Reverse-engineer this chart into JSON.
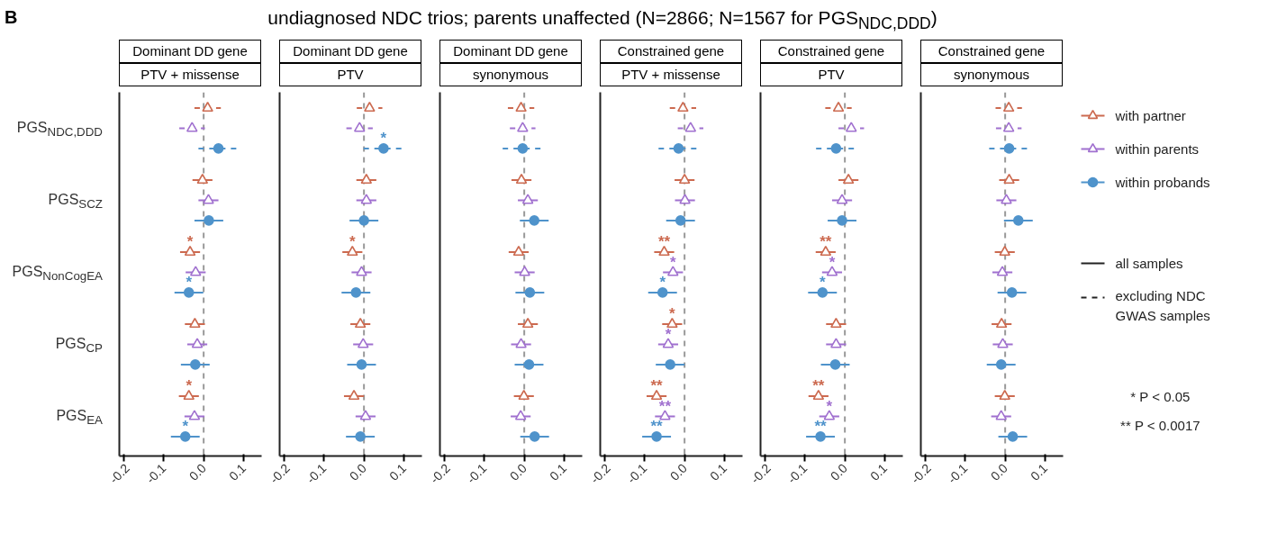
{
  "chart_data": [
    {
      "type": "scatter",
      "orientation": "horizontal",
      "title": "Dominant DD gene",
      "subtitle": "PTV + missense",
      "annotations": [
        "B",
        "undiagnosed NDC trios; parents unaffected (N=2866; N=1567 for PGS$_{NDC,DDD}$)"
      ],
      "categories": [
        "PGS$_{NDC,DDD}$",
        "PGS$_{SCZ}$",
        "PGS$_{NonCogEA}$",
        "PGS$_{CP}$",
        "PGS$_{EA}$"
      ],
      "xlim": [
        -0.211,
        0.145
      ],
      "xticks": [
        {
          "value": -0.2,
          "label": "-0.2"
        },
        {
          "value": -0.1,
          "label": "-0.1"
        },
        {
          "value": 0,
          "label": "0.0"
        },
        {
          "value": 0.1,
          "label": "0.1"
        }
      ],
      "ref_lines": [
        {
          "axis": "x",
          "value": 0,
          "color": "#999999",
          "line_style": "dashed"
        }
      ],
      "series": [
        {
          "color": "#cc6a50",
          "marker": "triangle",
          "line_style": "solid",
          "values": [
            null,
            -0.003,
            -0.034,
            -0.022,
            -0.037
          ],
          "errors": [
            null,
            0.025,
            0.025,
            0.025,
            0.025
          ],
          "value_labels": [
            null,
            null,
            "*",
            null,
            "*"
          ]
        },
        {
          "color": "#a070cf",
          "marker": "triangle",
          "line_style": "solid",
          "values": [
            null,
            0.012,
            -0.02,
            -0.016,
            -0.023
          ],
          "errors": [
            null,
            0.025,
            0.025,
            0.025,
            0.025
          ]
        },
        {
          "color": "#4f93cb",
          "marker": "circle",
          "line_style": "solid",
          "values": [
            null,
            0.013,
            -0.037,
            -0.021,
            -0.046
          ],
          "errors": [
            null,
            0.036,
            0.036,
            0.036,
            0.036
          ],
          "value_labels": [
            null,
            null,
            "*",
            null,
            "*"
          ]
        },
        {
          "color": "#cc6a50",
          "marker": "triangle",
          "line_style": "dashed",
          "values": [
            0.01,
            null,
            null,
            null,
            null
          ],
          "errors": [
            0.033,
            null,
            null,
            null,
            null
          ]
        },
        {
          "color": "#a070cf",
          "marker": "triangle",
          "line_style": "dashed",
          "values": [
            -0.029,
            null,
            null,
            null,
            null
          ],
          "errors": [
            0.032,
            null,
            null,
            null,
            null
          ]
        },
        {
          "color": "#4f93cb",
          "marker": "circle",
          "line_style": "dashed",
          "values": [
            0.037,
            null,
            null,
            null,
            null
          ],
          "errors": [
            0.05,
            null,
            null,
            null,
            null
          ]
        }
      ]
    },
    {
      "type": "scatter",
      "orientation": "horizontal",
      "title": "Dominant DD gene",
      "subtitle": "PTV",
      "tick_labels": "x",
      "categories": [
        "PGS$_{NDC,DDD}$",
        "PGS$_{SCZ}$",
        "PGS$_{NonCogEA}$",
        "PGS$_{CP}$",
        "PGS$_{EA}$"
      ],
      "xlim": [
        -0.211,
        0.145
      ],
      "xticks": [
        {
          "value": -0.2,
          "label": "-0.2"
        },
        {
          "value": -0.1,
          "label": "-0.1"
        },
        {
          "value": 0,
          "label": "0.0"
        },
        {
          "value": 0.1,
          "label": "0.1"
        }
      ],
      "ref_lines": [
        {
          "axis": "x",
          "value": 0,
          "color": "#999999",
          "line_style": "dashed"
        }
      ],
      "series": [
        {
          "color": "#cc6a50",
          "marker": "triangle",
          "line_style": "solid",
          "values": [
            null,
            0.006,
            -0.029,
            -0.009,
            -0.025
          ],
          "errors": [
            null,
            0.025,
            0.025,
            0.025,
            0.025
          ],
          "value_labels": [
            null,
            null,
            "*",
            null,
            null
          ]
        },
        {
          "color": "#a070cf",
          "marker": "triangle",
          "line_style": "solid",
          "values": [
            null,
            0.006,
            -0.006,
            -0.002,
            0.004
          ],
          "errors": [
            null,
            0.025,
            0.025,
            0.025,
            0.025
          ]
        },
        {
          "color": "#4f93cb",
          "marker": "circle",
          "line_style": "solid",
          "values": [
            null,
            0,
            -0.02,
            -0.006,
            -0.009
          ],
          "errors": [
            null,
            0.036,
            0.036,
            0.036,
            0.036
          ]
        },
        {
          "color": "#cc6a50",
          "marker": "triangle",
          "line_style": "dashed",
          "values": [
            0.014,
            null,
            null,
            null,
            null
          ],
          "errors": [
            0.032,
            null,
            null,
            null,
            null
          ]
        },
        {
          "color": "#a070cf",
          "marker": "triangle",
          "line_style": "dashed",
          "values": [
            -0.011,
            null,
            null,
            null,
            null
          ],
          "errors": [
            0.033,
            null,
            null,
            null,
            null
          ]
        },
        {
          "color": "#4f93cb",
          "marker": "circle",
          "line_style": "dashed",
          "values": [
            0.049,
            null,
            null,
            null,
            null
          ],
          "errors": [
            0.05,
            null,
            null,
            null,
            null
          ],
          "value_labels": [
            "*",
            null,
            null,
            null,
            null
          ]
        }
      ]
    },
    {
      "type": "scatter",
      "orientation": "horizontal",
      "title": "Dominant DD gene",
      "subtitle": "synonymous",
      "tick_labels": "x",
      "categories": [
        "PGS$_{NDC,DDD}$",
        "PGS$_{SCZ}$",
        "PGS$_{NonCogEA}$",
        "PGS$_{CP}$",
        "PGS$_{EA}$"
      ],
      "xlim": [
        -0.211,
        0.145
      ],
      "xticks": [
        {
          "value": -0.2,
          "label": "-0.2"
        },
        {
          "value": -0.1,
          "label": "-0.1"
        },
        {
          "value": 0,
          "label": "0.0"
        },
        {
          "value": 0.1,
          "label": "0.1"
        }
      ],
      "ref_lines": [
        {
          "axis": "x",
          "value": 0,
          "color": "#999999",
          "line_style": "dashed"
        }
      ],
      "series": [
        {
          "color": "#cc6a50",
          "marker": "triangle",
          "line_style": "solid",
          "values": [
            null,
            -0.007,
            -0.014,
            0.009,
            -0.001
          ],
          "errors": [
            null,
            0.025,
            0.025,
            0.025,
            0.025
          ]
        },
        {
          "color": "#a070cf",
          "marker": "triangle",
          "line_style": "solid",
          "values": [
            null,
            0.009,
            0.001,
            -0.008,
            -0.009
          ],
          "errors": [
            null,
            0.025,
            0.025,
            0.025,
            0.025
          ]
        },
        {
          "color": "#4f93cb",
          "marker": "circle",
          "line_style": "solid",
          "values": [
            null,
            0.025,
            0.014,
            0.012,
            0.026
          ],
          "errors": [
            null,
            0.036,
            0.036,
            0.036,
            0.036
          ]
        },
        {
          "color": "#cc6a50",
          "marker": "triangle",
          "line_style": "dashed",
          "values": [
            -0.008,
            null,
            null,
            null,
            null
          ],
          "errors": [
            0.033,
            null,
            null,
            null,
            null
          ]
        },
        {
          "color": "#a070cf",
          "marker": "triangle",
          "line_style": "dashed",
          "values": [
            -0.004,
            null,
            null,
            null,
            null
          ],
          "errors": [
            0.032,
            null,
            null,
            null,
            null
          ]
        },
        {
          "color": "#4f93cb",
          "marker": "circle",
          "line_style": "dashed",
          "values": [
            -0.004,
            null,
            null,
            null,
            null
          ],
          "errors": [
            0.05,
            null,
            null,
            null,
            null
          ]
        }
      ]
    },
    {
      "type": "scatter",
      "orientation": "horizontal",
      "title": "Constrained gene",
      "subtitle": "PTV + missense",
      "tick_labels": "x",
      "categories": [
        "PGS$_{NDC,DDD}$",
        "PGS$_{SCZ}$",
        "PGS$_{NonCogEA}$",
        "PGS$_{CP}$",
        "PGS$_{EA}$"
      ],
      "xlim": [
        -0.211,
        0.145
      ],
      "xticks": [
        {
          "value": -0.2,
          "label": "-0.2"
        },
        {
          "value": -0.1,
          "label": "-0.1"
        },
        {
          "value": 0,
          "label": "0.0"
        },
        {
          "value": 0.1,
          "label": "0.1"
        }
      ],
      "ref_lines": [
        {
          "axis": "x",
          "value": 0,
          "color": "#999999",
          "line_style": "dashed"
        }
      ],
      "series": [
        {
          "color": "#cc6a50",
          "marker": "triangle",
          "line_style": "solid",
          "values": [
            null,
            0,
            -0.051,
            -0.031,
            -0.07
          ],
          "errors": [
            null,
            0.025,
            0.025,
            0.025,
            0.025
          ],
          "value_labels": [
            null,
            null,
            "**",
            "*",
            "**"
          ]
        },
        {
          "color": "#a070cf",
          "marker": "triangle",
          "line_style": "solid",
          "values": [
            null,
            0.001,
            -0.029,
            -0.041,
            -0.049
          ],
          "errors": [
            null,
            0.025,
            0.025,
            0.025,
            0.025
          ],
          "value_labels": [
            null,
            null,
            "*",
            "*",
            "**"
          ]
        },
        {
          "color": "#4f93cb",
          "marker": "circle",
          "line_style": "solid",
          "values": [
            null,
            -0.01,
            -0.055,
            -0.036,
            -0.07
          ],
          "errors": [
            null,
            0.036,
            0.036,
            0.036,
            0.036
          ],
          "value_labels": [
            null,
            null,
            "*",
            null,
            "**"
          ]
        },
        {
          "color": "#cc6a50",
          "marker": "triangle",
          "line_style": "dashed",
          "values": [
            -0.004,
            null,
            null,
            null,
            null
          ],
          "errors": [
            0.033,
            null,
            null,
            null,
            null
          ]
        },
        {
          "color": "#a070cf",
          "marker": "triangle",
          "line_style": "dashed",
          "values": [
            0.015,
            null,
            null,
            null,
            null
          ],
          "errors": [
            0.032,
            null,
            null,
            null,
            null
          ]
        },
        {
          "color": "#4f93cb",
          "marker": "circle",
          "line_style": "dashed",
          "values": [
            -0.015,
            null,
            null,
            null,
            null
          ],
          "errors": [
            0.05,
            null,
            null,
            null,
            null
          ]
        }
      ]
    },
    {
      "type": "scatter",
      "orientation": "horizontal",
      "title": "Constrained gene",
      "subtitle": "PTV",
      "tick_labels": "x",
      "categories": [
        "PGS$_{NDC,DDD}$",
        "PGS$_{SCZ}$",
        "PGS$_{NonCogEA}$",
        "PGS$_{CP}$",
        "PGS$_{EA}$"
      ],
      "xlim": [
        -0.211,
        0.145
      ],
      "xticks": [
        {
          "value": -0.2,
          "label": "-0.2"
        },
        {
          "value": -0.1,
          "label": "-0.1"
        },
        {
          "value": 0,
          "label": "0.0"
        },
        {
          "value": 0.1,
          "label": "0.1"
        }
      ],
      "ref_lines": [
        {
          "axis": "x",
          "value": 0,
          "color": "#999999",
          "line_style": "dashed"
        }
      ],
      "series": [
        {
          "color": "#cc6a50",
          "marker": "triangle",
          "line_style": "solid",
          "values": [
            null,
            0.009,
            -0.048,
            -0.022,
            -0.066
          ],
          "errors": [
            null,
            0.025,
            0.025,
            0.025,
            0.025
          ],
          "value_labels": [
            null,
            null,
            "**",
            null,
            "**"
          ]
        },
        {
          "color": "#a070cf",
          "marker": "triangle",
          "line_style": "solid",
          "values": [
            null,
            -0.007,
            -0.032,
            -0.022,
            -0.039
          ],
          "errors": [
            null,
            0.025,
            0.025,
            0.025,
            0.025
          ],
          "value_labels": [
            null,
            null,
            "*",
            null,
            "*"
          ]
        },
        {
          "color": "#4f93cb",
          "marker": "circle",
          "line_style": "solid",
          "values": [
            null,
            -0.007,
            -0.056,
            -0.024,
            -0.061
          ],
          "errors": [
            null,
            0.036,
            0.036,
            0.036,
            0.036
          ],
          "value_labels": [
            null,
            null,
            "*",
            null,
            "**"
          ]
        },
        {
          "color": "#cc6a50",
          "marker": "triangle",
          "line_style": "dashed",
          "values": [
            -0.016,
            null,
            null,
            null,
            null
          ],
          "errors": [
            0.033,
            null,
            null,
            null,
            null
          ]
        },
        {
          "color": "#a070cf",
          "marker": "triangle",
          "line_style": "dashed",
          "values": [
            0.016,
            null,
            null,
            null,
            null
          ],
          "errors": [
            0.032,
            null,
            null,
            null,
            null
          ]
        },
        {
          "color": "#4f93cb",
          "marker": "circle",
          "line_style": "dashed",
          "values": [
            -0.022,
            null,
            null,
            null,
            null
          ],
          "errors": [
            0.05,
            null,
            null,
            null,
            null
          ]
        }
      ]
    },
    {
      "type": "scatter",
      "orientation": "horizontal",
      "title": "Constrained gene",
      "subtitle": "synonymous",
      "tick_labels": "x",
      "legend": "right",
      "annotations": [
        "all samples",
        "excluding NDC GWAS samples",
        "* P < 0.05",
        "** P < 0.0017"
      ],
      "categories": [
        "PGS$_{NDC,DDD}$",
        "PGS$_{SCZ}$",
        "PGS$_{NonCogEA}$",
        "PGS$_{CP}$",
        "PGS$_{EA}$"
      ],
      "xlim": [
        -0.211,
        0.145
      ],
      "xticks": [
        {
          "value": -0.2,
          "label": "-0.2"
        },
        {
          "value": -0.1,
          "label": "-0.1"
        },
        {
          "value": 0,
          "label": "0.0"
        },
        {
          "value": 0.1,
          "label": "0.1"
        }
      ],
      "ref_lines": [
        {
          "axis": "x",
          "value": 0,
          "color": "#999999",
          "line_style": "dashed"
        }
      ],
      "series": [
        {
          "name": "with partner",
          "color": "#cc6a50",
          "marker": "triangle",
          "line_style": "solid",
          "values": [
            null,
            0.01,
            -0.001,
            -0.009,
            -0.001
          ],
          "errors": [
            null,
            0.025,
            0.025,
            0.025,
            0.025
          ]
        },
        {
          "name": "within parents",
          "color": "#a070cf",
          "marker": "triangle",
          "line_style": "solid",
          "values": [
            null,
            0.003,
            -0.007,
            -0.006,
            -0.01
          ],
          "errors": [
            null,
            0.025,
            0.025,
            0.025,
            0.025
          ]
        },
        {
          "name": "within probands",
          "color": "#4f93cb",
          "marker": "circle",
          "line_style": "solid",
          "values": [
            null,
            0.033,
            0.017,
            -0.01,
            0.019
          ],
          "errors": [
            null,
            0.036,
            0.036,
            0.036,
            0.036
          ]
        },
        {
          "color": "#cc6a50",
          "marker": "triangle",
          "line_style": "dashed",
          "values": [
            0.009,
            null,
            null,
            null,
            null
          ],
          "errors": [
            0.033,
            null,
            null,
            null,
            null
          ]
        },
        {
          "color": "#a070cf",
          "marker": "triangle",
          "line_style": "dashed",
          "values": [
            0.009,
            null,
            null,
            null,
            null
          ],
          "errors": [
            0.032,
            null,
            null,
            null,
            null
          ]
        },
        {
          "color": "#4f93cb",
          "marker": "circle",
          "line_style": "dashed",
          "values": [
            0.01,
            null,
            null,
            null,
            null
          ],
          "errors": [
            0.05,
            null,
            null,
            null,
            null
          ]
        }
      ]
    }
  ]
}
